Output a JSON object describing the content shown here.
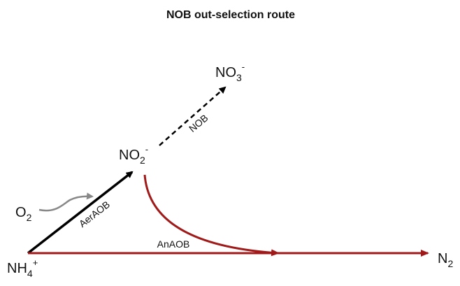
{
  "title": "NOB out-selection route",
  "nodes": [
    {
      "base": "NH",
      "sub": "4",
      "sup": "+"
    },
    {
      "base": "NO",
      "sub": "2",
      "sup": "-"
    },
    {
      "base": "NO",
      "sub": "3",
      "sup": "-"
    },
    {
      "base": "N",
      "sub": "2"
    },
    {
      "base": "O",
      "sub": "2"
    }
  ],
  "edges": [
    {
      "label": "AerAOB"
    },
    {
      "label": "NOB"
    },
    {
      "label": "AnAOB"
    }
  ]
}
